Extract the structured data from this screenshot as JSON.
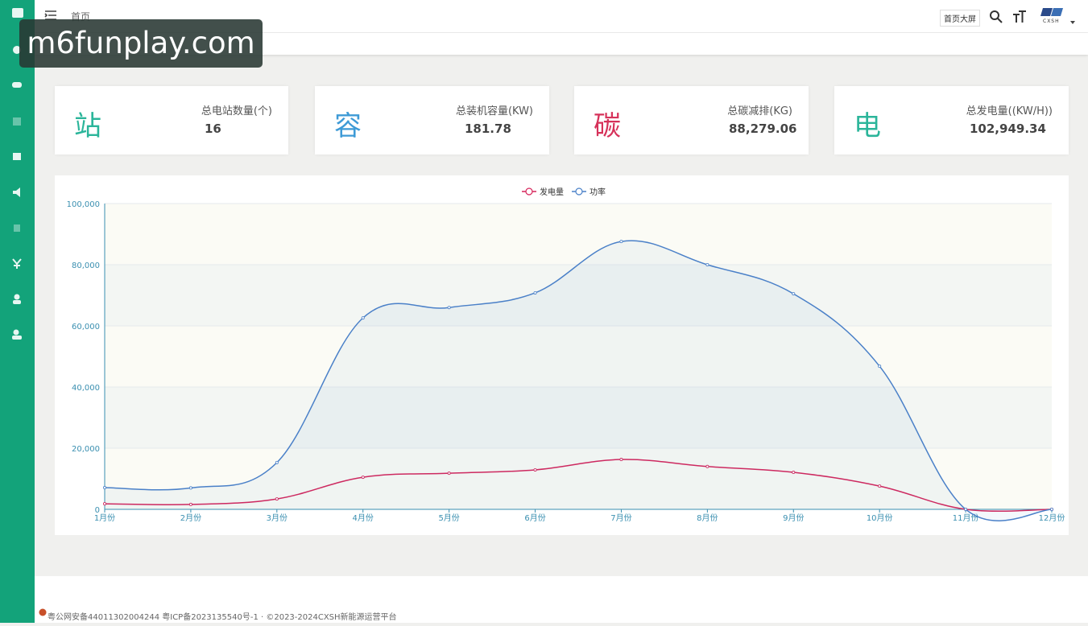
{
  "topbar": {
    "breadcrumb": "首页",
    "screen_button": "首页大屏",
    "logo": "CXSH"
  },
  "watermark": "m6funplay.com",
  "stats": [
    {
      "icon": "站",
      "label": "总电站数量(个)",
      "value": "16"
    },
    {
      "icon": "容",
      "label": "总装机容量(KW)",
      "value": "181.78"
    },
    {
      "icon": "碳",
      "label": "总碳减排(KG)",
      "value": "88,279.06"
    },
    {
      "icon": "电",
      "label": "总发电量((KW/H))",
      "value": "102,949.34"
    }
  ],
  "chart_data": {
    "type": "line",
    "categories": [
      "1月份",
      "2月份",
      "3月份",
      "4月份",
      "5月份",
      "6月份",
      "7月份",
      "8月份",
      "9月份",
      "10月份",
      "11月份",
      "12月份"
    ],
    "series": [
      {
        "name": "发电量",
        "color": "#d6245a",
        "values": [
          1800,
          1600,
          3400,
          10500,
          11800,
          12900,
          16300,
          14000,
          12100,
          7600,
          0,
          0
        ]
      },
      {
        "name": "功率",
        "color": "#4a80c8",
        "values": [
          7100,
          7000,
          15300,
          62600,
          66000,
          70800,
          87600,
          80000,
          70500,
          46800,
          0,
          0
        ]
      }
    ],
    "ylim": [
      0,
      100000
    ],
    "yticks": [
      0,
      {
        "value": 20000,
        "label": "20,000"
      },
      {
        "value": 40000,
        "label": "40,000"
      },
      {
        "value": 60000,
        "label": "60,000"
      },
      {
        "value": 80000,
        "label": "80,000"
      },
      {
        "value": 100000,
        "label": "100,000"
      }
    ],
    "grid": true,
    "legend": "top"
  },
  "footer": "粤公网安备44011302004244 粤ICP备2023135540号-1 · ©2023-2024CXSH新能源运营平台"
}
